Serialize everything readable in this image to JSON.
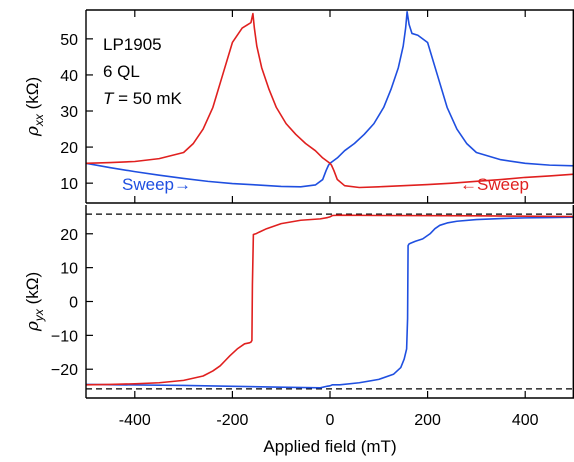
{
  "chart_data": {
    "type": "line",
    "xlabel": "Applied field (mT)",
    "xlim": [
      -500,
      500
    ],
    "xticks": [
      -400,
      -200,
      0,
      200,
      400
    ],
    "annotations": {
      "sample": "LP1905",
      "thickness": "6 QL",
      "temp_var": "T",
      "temp_value": " = 50 mK",
      "sweep_up": "Sweep→",
      "sweep_down": "←Sweep"
    },
    "colors": {
      "up": "#1f4fe0",
      "down": "#e0201f",
      "ref": "#000000"
    },
    "panels": [
      {
        "id": "rho_xx",
        "ylabel_sym": "ρ",
        "ylabel_sub": "xx",
        "ylabel_unit": " (kΩ)",
        "ylim": [
          4.5,
          58
        ],
        "yticks": [
          10,
          20,
          30,
          40,
          50
        ],
        "series": [
          {
            "dir": "up",
            "x": [
              -500,
              -450,
              -400,
              -350,
              -300,
              -250,
              -200,
              -150,
              -100,
              -60,
              -30,
              -15,
              -8,
              -3,
              0,
              5,
              15,
              30,
              50,
              70,
              90,
              110,
              125,
              140,
              150,
              155,
              158,
              162,
              168,
              180,
              200,
              220,
              240,
              260,
              280,
              300,
              350,
              400,
              450,
              500
            ],
            "y": [
              15.5,
              14.3,
              13.2,
              12.2,
              11.3,
              10.5,
              9.9,
              9.5,
              9.1,
              9.0,
              9.5,
              11,
              13.5,
              15,
              15.5,
              16,
              17,
              19,
              21,
              23.5,
              26.5,
              31,
              36,
              42,
              48,
              53,
              57.5,
              54,
              51.5,
              51,
              49,
              40,
              31,
              25,
              21,
              18.5,
              16.5,
              15.5,
              15,
              14.8
            ]
          },
          {
            "dir": "down",
            "x": [
              500,
              450,
              400,
              350,
              300,
              250,
              200,
              150,
              100,
              60,
              30,
              15,
              8,
              3,
              0,
              -5,
              -15,
              -30,
              -50,
              -70,
              -90,
              -110,
              -125,
              -140,
              -150,
              -155,
              -158,
              -162,
              -168,
              -180,
              -200,
              -220,
              -240,
              -260,
              -280,
              -300,
              -350,
              -400,
              -450,
              -500
            ],
            "y": [
              12.5,
              12.0,
              11.6,
              11.0,
              10.5,
              10.0,
              9.6,
              9.3,
              9.0,
              8.8,
              9.3,
              11,
              13.5,
              15,
              15.5,
              16,
              17,
              19,
              21,
              23.5,
              26.5,
              31,
              36,
              42,
              48,
              53,
              57,
              54.5,
              54,
              53,
              49,
              40,
              31,
              25,
              21,
              18.5,
              16.8,
              16.0,
              15.7,
              15.5
            ]
          }
        ]
      },
      {
        "id": "rho_yx",
        "ylabel_sym": "ρ",
        "ylabel_sub": "yx",
        "ylabel_unit": " (kΩ)",
        "ylim": [
          -28.5,
          28.5
        ],
        "yticks": [
          -20,
          -10,
          0,
          10,
          20
        ],
        "ref_levels": [
          25.8,
          -25.8
        ],
        "series": [
          {
            "dir": "up",
            "x": [
              -500,
              -300,
              -100,
              -20,
              -5,
              0,
              5,
              20,
              60,
              100,
              130,
              145,
              152,
              157,
              159,
              160,
              162,
              165,
              175,
              190,
              205,
              215,
              225,
              240,
              260,
              300,
              350,
              400,
              450,
              500
            ],
            "y": [
              -24.5,
              -24.8,
              -25.3,
              -25.5,
              -25.0,
              -24.9,
              -24.6,
              -24.6,
              -24.0,
              -23.0,
              -21.5,
              -19.5,
              -17,
              -14,
              -5,
              16.5,
              17,
              17.2,
              17.8,
              18.5,
              20,
              21.5,
              22.5,
              23.2,
              23.7,
              24.2,
              24.5,
              24.7,
              24.8,
              24.9
            ]
          },
          {
            "dir": "down",
            "x": [
              500,
              300,
              100,
              20,
              5,
              0,
              -5,
              -20,
              -60,
              -100,
              -130,
              -145,
              -152,
              -157,
              -159,
              -160,
              -162,
              -165,
              -175,
              -190,
              -205,
              -215,
              -225,
              -240,
              -260,
              -300,
              -350,
              -400,
              -450,
              -500
            ],
            "y": [
              25.1,
              25.3,
              25.4,
              25.5,
              25.4,
              25.0,
              24.8,
              24.4,
              24.0,
              23.0,
              21.5,
              20.5,
              20.0,
              19.8,
              5,
              -11.5,
              -12,
              -12.2,
              -12.5,
              -14,
              -16,
              -17.5,
              -19,
              -20.5,
              -22,
              -23.3,
              -24,
              -24.3,
              -24.5,
              -24.6
            ]
          }
        ]
      }
    ]
  }
}
